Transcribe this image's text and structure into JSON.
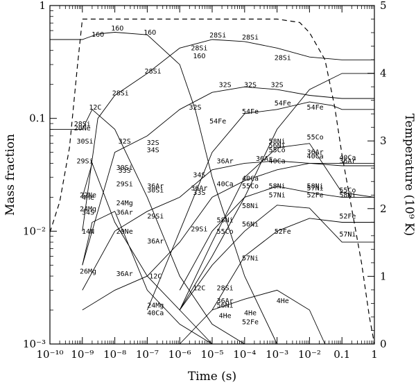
{
  "chart_data": {
    "type": "line",
    "xlabel": "Time (s)",
    "ylabel": "Mass fraction",
    "y2label": "Temperature (10⁹ K)",
    "xscale": "log",
    "yscale": "log",
    "xlim": [
      1e-10,
      1
    ],
    "ylim": [
      0.001,
      1
    ],
    "y2lim": [
      0,
      5
    ],
    "x_ticks": [
      "10⁻¹⁰",
      "10⁻⁹",
      "10⁻⁸",
      "10⁻⁷",
      "10⁻⁶",
      "10⁻⁵",
      "10⁻⁴",
      "10⁻³",
      "10⁻²",
      "0.1",
      "1"
    ],
    "y_ticks": [
      "10⁻³",
      "10⁻²",
      "0.1",
      "1"
    ],
    "y2_ticks": [
      "0",
      "1",
      "2",
      "3",
      "4",
      "5"
    ],
    "temperature": {
      "style": "dashed",
      "x": [
        1e-10,
        2e-10,
        4e-10,
        7e-10,
        1e-09,
        2e-09,
        0.001,
        0.005,
        0.01,
        0.03,
        0.06,
        0.1,
        0.2,
        0.4,
        0.7,
        1
      ],
      "y": [
        1.65,
        2.1,
        2.9,
        4.1,
        4.8,
        4.8,
        4.8,
        4.75,
        4.6,
        4.2,
        3.5,
        2.8,
        2.0,
        1.2,
        0.4,
        0.0
      ]
    },
    "series": [
      {
        "name": "16O",
        "x": [
          1e-10,
          1e-09,
          3e-09,
          1e-08,
          1e-07,
          1e-06,
          3e-06,
          1e-05,
          0.0001,
          0.001
        ],
        "y": [
          0.5,
          0.5,
          0.56,
          0.58,
          0.55,
          0.3,
          0.12,
          0.03,
          0.004,
          0.001
        ]
      },
      {
        "name": "28Si",
        "x": [
          1e-09,
          3e-09,
          1e-08,
          1e-07,
          1e-06,
          1e-05,
          0.0001,
          0.001,
          0.01,
          0.1,
          1
        ],
        "y": [
          0.01,
          0.1,
          0.16,
          0.25,
          0.42,
          0.5,
          0.48,
          0.42,
          0.35,
          0.33,
          0.33
        ]
      },
      {
        "name": "32S",
        "x": [
          1e-09,
          1e-08,
          1e-07,
          1e-06,
          1e-05,
          0.0001,
          0.001,
          0.01,
          0.1,
          1
        ],
        "y": [
          0.005,
          0.05,
          0.07,
          0.12,
          0.17,
          0.19,
          0.18,
          0.16,
          0.15,
          0.15
        ]
      },
      {
        "name": "54Fe",
        "x": [
          1e-07,
          1e-06,
          1e-05,
          0.0001,
          0.001,
          0.01,
          0.05,
          0.1,
          1
        ],
        "y": [
          0.002,
          0.01,
          0.05,
          0.11,
          0.12,
          0.14,
          0.13,
          0.12,
          0.12
        ]
      },
      {
        "name": "56Ni",
        "x": [
          1e-06,
          1e-05,
          0.0001,
          0.001,
          0.01,
          0.1,
          1
        ],
        "y": [
          0.002,
          0.006,
          0.02,
          0.08,
          0.18,
          0.25,
          0.25
        ]
      },
      {
        "name": "36Ar",
        "x": [
          1e-09,
          1e-08,
          1e-07,
          1e-06,
          1e-05,
          0.0001,
          0.001,
          0.01,
          0.1,
          1
        ],
        "y": [
          0.003,
          0.01,
          0.015,
          0.02,
          0.035,
          0.04,
          0.042,
          0.04,
          0.038,
          0.038
        ]
      },
      {
        "name": "40Ca",
        "x": [
          1e-09,
          1e-08,
          1e-07,
          1e-06,
          1e-05,
          0.0001,
          0.001,
          0.01,
          0.1,
          1
        ],
        "y": [
          0.002,
          0.003,
          0.004,
          0.008,
          0.02,
          0.028,
          0.035,
          0.04,
          0.04,
          0.04
        ]
      },
      {
        "name": "55Co",
        "x": [
          1e-06,
          1e-05,
          0.0001,
          0.001,
          0.01,
          0.1,
          1
        ],
        "y": [
          0.002,
          0.008,
          0.03,
          0.055,
          0.06,
          0.022,
          0.02
        ]
      },
      {
        "name": "58Ni",
        "x": [
          1e-06,
          1e-05,
          0.0001,
          0.001,
          0.01,
          0.1,
          1
        ],
        "y": [
          0.003,
          0.01,
          0.02,
          0.025,
          0.022,
          0.02,
          0.02
        ]
      },
      {
        "name": "57Ni",
        "x": [
          1e-06,
          1e-05,
          0.0001,
          0.001,
          0.01,
          0.1,
          1
        ],
        "y": [
          0.002,
          0.005,
          0.01,
          0.017,
          0.016,
          0.008,
          0.008
        ]
      },
      {
        "name": "52Fe",
        "x": [
          1e-06,
          1e-05,
          0.0001,
          0.001,
          0.01,
          0.1,
          1
        ],
        "y": [
          0.001,
          0.002,
          0.006,
          0.01,
          0.013,
          0.012,
          0.012
        ]
      },
      {
        "name": "12C",
        "x": [
          1e-10,
          1e-09,
          2e-09,
          1e-08,
          1e-07,
          1e-06,
          1e-05,
          0.0001
        ],
        "y": [
          0.08,
          0.08,
          0.12,
          0.08,
          0.02,
          0.004,
          0.0015,
          0.001
        ]
      },
      {
        "name": "20Ne",
        "x": [
          1e-09,
          2e-09,
          1e-08,
          1e-07,
          1e-06,
          1e-05
        ],
        "y": [
          0.02,
          0.04,
          0.012,
          0.004,
          0.002,
          0.001
        ]
      },
      {
        "name": "24Mg",
        "x": [
          1e-09,
          2e-09,
          1e-08,
          1e-07,
          1e-06,
          1e-05
        ],
        "y": [
          0.005,
          0.012,
          0.015,
          0.003,
          0.0015,
          0.001
        ]
      },
      {
        "name": "4He",
        "x": [
          1e-05,
          0.0001,
          0.001,
          0.01,
          0.03
        ],
        "y": [
          0.002,
          0.0025,
          0.003,
          0.002,
          0.001
        ]
      }
    ],
    "labels": [
      {
        "t": "16O",
        "x": 3e-09,
        "y": 0.53
      },
      {
        "t": "16O",
        "x": 1.2e-08,
        "y": 0.6
      },
      {
        "t": "16O",
        "x": 1.2e-07,
        "y": 0.55
      },
      {
        "t": "28Si",
        "x": 4e-06,
        "y": 0.4
      },
      {
        "t": "16O",
        "x": 4e-06,
        "y": 0.34
      },
      {
        "t": "28Si",
        "x": 1.5e-05,
        "y": 0.52
      },
      {
        "t": "28Si",
        "x": 0.00015,
        "y": 0.5
      },
      {
        "t": "28Si",
        "x": 1.5e-07,
        "y": 0.25
      },
      {
        "t": "28Si",
        "x": 0.0015,
        "y": 0.33
      },
      {
        "t": "28Si",
        "x": 1.5e-08,
        "y": 0.16
      },
      {
        "t": "12C",
        "x": 2.5e-09,
        "y": 0.12
      },
      {
        "t": "32S",
        "x": 2.5e-05,
        "y": 0.19
      },
      {
        "t": "32S",
        "x": 0.00015,
        "y": 0.19
      },
      {
        "t": "32S",
        "x": 0.001,
        "y": 0.19
      },
      {
        "t": "32S",
        "x": 3e-06,
        "y": 0.12
      },
      {
        "t": "54Fe",
        "x": 0.00015,
        "y": 0.11
      },
      {
        "t": "54Fe",
        "x": 0.0015,
        "y": 0.13
      },
      {
        "t": "54Fe",
        "x": 0.015,
        "y": 0.12
      },
      {
        "t": "54Fe",
        "x": 1.5e-05,
        "y": 0.09
      },
      {
        "t": "28Si",
        "x": 1e-09,
        "y": 0.085
      },
      {
        "t": "20Ne",
        "x": 1e-09,
        "y": 0.078
      },
      {
        "t": "30Si",
        "x": 1.2e-09,
        "y": 0.06
      },
      {
        "t": "32S",
        "x": 2e-08,
        "y": 0.06
      },
      {
        "t": "32S",
        "x": 1.5e-07,
        "y": 0.058
      },
      {
        "t": "34S",
        "x": 1.5e-07,
        "y": 0.05
      },
      {
        "t": "29Si",
        "x": 1.2e-09,
        "y": 0.04
      },
      {
        "t": "30Si",
        "x": 2e-08,
        "y": 0.035
      },
      {
        "t": "33S",
        "x": 2e-08,
        "y": 0.033
      },
      {
        "t": "36Ar",
        "x": 2.5e-05,
        "y": 0.04
      },
      {
        "t": "36Ar",
        "x": 0.0004,
        "y": 0.042
      },
      {
        "t": "40Ca",
        "x": 0.001,
        "y": 0.04
      },
      {
        "t": "34S",
        "x": 4e-06,
        "y": 0.03
      },
      {
        "t": "58Ni",
        "x": 0.001,
        "y": 0.06
      },
      {
        "t": "56Ni",
        "x": 0.001,
        "y": 0.055
      },
      {
        "t": "55Co",
        "x": 0.001,
        "y": 0.05
      },
      {
        "t": "55Co",
        "x": 0.015,
        "y": 0.065
      },
      {
        "t": "36Ar",
        "x": 0.015,
        "y": 0.048
      },
      {
        "t": "40Ca",
        "x": 0.015,
        "y": 0.044
      },
      {
        "t": "40Ca",
        "x": 0.15,
        "y": 0.043
      },
      {
        "t": "36Ar",
        "x": 0.15,
        "y": 0.04
      },
      {
        "t": "40Ca",
        "x": 0.00015,
        "y": 0.028
      },
      {
        "t": "55Co",
        "x": 0.00015,
        "y": 0.024
      },
      {
        "t": "40Ca",
        "x": 2.5e-05,
        "y": 0.025
      },
      {
        "t": "29Si",
        "x": 2e-08,
        "y": 0.025
      },
      {
        "t": "36Ar",
        "x": 1.8e-07,
        "y": 0.024
      },
      {
        "t": "30Si",
        "x": 1.8e-07,
        "y": 0.022
      },
      {
        "t": "36Ar",
        "x": 4e-06,
        "y": 0.023
      },
      {
        "t": "33S",
        "x": 4e-06,
        "y": 0.021
      },
      {
        "t": "58Ni",
        "x": 0.001,
        "y": 0.024
      },
      {
        "t": "58Ni",
        "x": 0.015,
        "y": 0.024
      },
      {
        "t": "57Ni",
        "x": 0.015,
        "y": 0.023
      },
      {
        "t": "52Fe",
        "x": 0.015,
        "y": 0.02
      },
      {
        "t": "57Ni",
        "x": 0.001,
        "y": 0.02
      },
      {
        "t": "55Co",
        "x": 0.15,
        "y": 0.022
      },
      {
        "t": "58Ni",
        "x": 0.15,
        "y": 0.02
      },
      {
        "t": "22Ne",
        "x": 1.5e-09,
        "y": 0.02
      },
      {
        "t": "4He",
        "x": 1.5e-09,
        "y": 0.019
      },
      {
        "t": "24Mg",
        "x": 2e-08,
        "y": 0.017
      },
      {
        "t": "24Mg",
        "x": 1.5e-09,
        "y": 0.015
      },
      {
        "t": "34S",
        "x": 1.5e-09,
        "y": 0.014
      },
      {
        "t": "36Ar",
        "x": 2e-08,
        "y": 0.014
      },
      {
        "t": "29Si",
        "x": 1.8e-07,
        "y": 0.013
      },
      {
        "t": "58Ni",
        "x": 2.5e-05,
        "y": 0.012
      },
      {
        "t": "58Ni",
        "x": 0.00015,
        "y": 0.016
      },
      {
        "t": "29Si",
        "x": 4e-06,
        "y": 0.01
      },
      {
        "t": "56Ni",
        "x": 0.00015,
        "y": 0.011
      },
      {
        "t": "52Fe",
        "x": 0.15,
        "y": 0.013
      },
      {
        "t": "14N",
        "x": 1.5e-09,
        "y": 0.0095
      },
      {
        "t": "20Ne",
        "x": 2e-08,
        "y": 0.0095
      },
      {
        "t": "36Ar",
        "x": 1.8e-07,
        "y": 0.0078
      },
      {
        "t": "52Fe",
        "x": 0.0015,
        "y": 0.0095
      },
      {
        "t": "57Ni",
        "x": 0.15,
        "y": 0.009
      },
      {
        "t": "55Co",
        "x": 2.5e-05,
        "y": 0.0095
      },
      {
        "t": "57Ni",
        "x": 0.00015,
        "y": 0.0055
      },
      {
        "t": "26Mg",
        "x": 1.5e-09,
        "y": 0.0042
      },
      {
        "t": "36Ar",
        "x": 2e-08,
        "y": 0.004
      },
      {
        "t": "12C",
        "x": 1.8e-07,
        "y": 0.0038
      },
      {
        "t": "12C",
        "x": 4e-06,
        "y": 0.003
      },
      {
        "t": "28Si",
        "x": 2.5e-05,
        "y": 0.003
      },
      {
        "t": "36Ar",
        "x": 2.5e-05,
        "y": 0.0023
      },
      {
        "t": "56Ni",
        "x": 2.5e-05,
        "y": 0.0021
      },
      {
        "t": "24Mg",
        "x": 1.8e-07,
        "y": 0.0021
      },
      {
        "t": "40Ca",
        "x": 1.8e-07,
        "y": 0.0018
      },
      {
        "t": "4He",
        "x": 0.00015,
        "y": 0.0018
      },
      {
        "t": "4He",
        "x": 2.5e-05,
        "y": 0.0017
      },
      {
        "t": "52Fe",
        "x": 0.00015,
        "y": 0.0015
      },
      {
        "t": "4He",
        "x": 0.0015,
        "y": 0.0023
      }
    ]
  }
}
